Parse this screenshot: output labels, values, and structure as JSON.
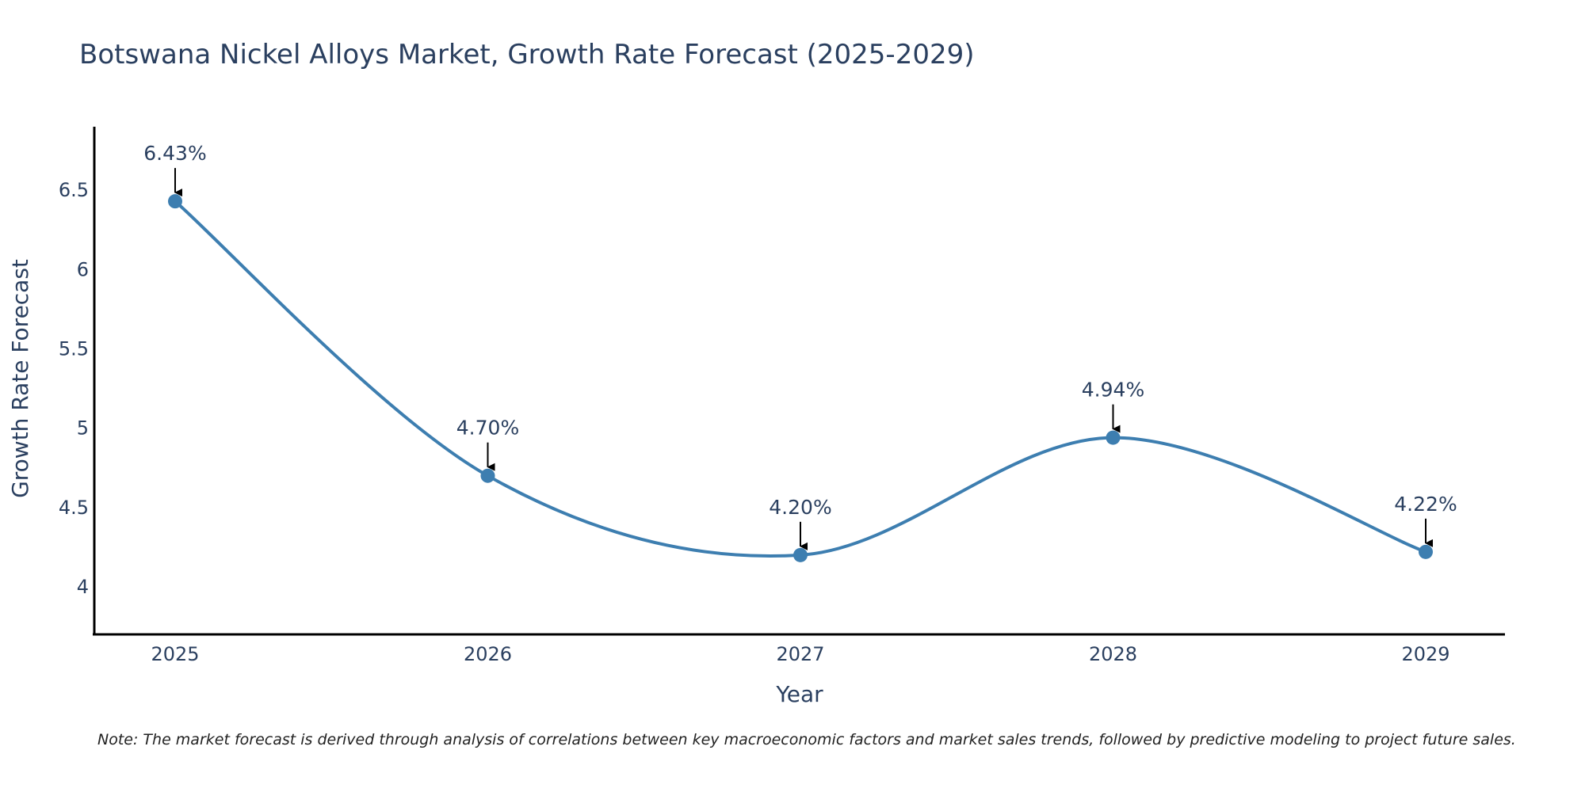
{
  "chart_data": {
    "type": "line",
    "title": "Botswana Nickel Alloys Market, Growth Rate Forecast (2025-2029)",
    "xlabel": "Year",
    "ylabel": "Growth Rate Forecast",
    "categories": [
      "2025",
      "2026",
      "2027",
      "2028",
      "2029"
    ],
    "series": [
      {
        "name": "Growth Rate Forecast",
        "values": [
          6.43,
          4.7,
          4.2,
          4.94,
          4.22
        ],
        "labels": [
          "6.43%",
          "4.70%",
          "4.20%",
          "4.94%",
          "4.22%"
        ]
      }
    ],
    "ylim": [
      3.7,
      6.9
    ],
    "yticks": [
      4,
      4.5,
      5,
      5.5,
      6,
      6.5
    ],
    "ytick_labels": [
      "4",
      "4.5",
      "5",
      "5.5",
      "6",
      "6.5"
    ],
    "grid": false,
    "legend": "none",
    "note": "Note: The market forecast is derived through analysis of correlations between key macroeconomic factors and market sales trends, followed by predictive modeling to project future sales."
  },
  "colors": {
    "line": "#3d7eb0",
    "marker": "#3d7eb0",
    "axis": "#000000",
    "text": "#2a3f5f",
    "arrow": "#000000"
  }
}
